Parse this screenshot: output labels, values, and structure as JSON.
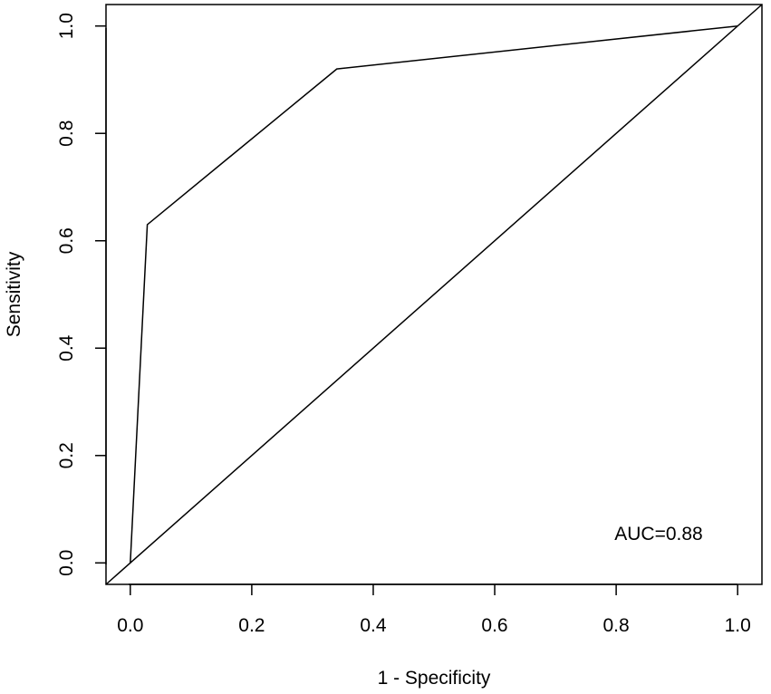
{
  "chart_data": {
    "type": "line",
    "title": "",
    "xlabel": "1 - Specificity",
    "ylabel": "Sensitivity",
    "xlim": [
      -0.04,
      1.04
    ],
    "ylim": [
      -0.04,
      1.04
    ],
    "xticks": [
      0.0,
      0.2,
      0.4,
      0.6,
      0.8,
      1.0
    ],
    "yticks": [
      0.0,
      0.2,
      0.4,
      0.6,
      0.8,
      1.0
    ],
    "xtick_labels": [
      "0.0",
      "0.2",
      "0.4",
      "0.6",
      "0.8",
      "1.0"
    ],
    "ytick_labels": [
      "0.0",
      "0.2",
      "0.4",
      "0.6",
      "0.8",
      "1.0"
    ],
    "grid": false,
    "series": [
      {
        "points": [
          [
            0.0,
            0.0
          ],
          [
            0.028,
            0.63
          ],
          [
            0.34,
            0.92
          ],
          [
            1.0,
            1.0
          ]
        ]
      }
    ],
    "reference_line": [
      [
        -0.04,
        -0.04
      ],
      [
        1.04,
        1.04
      ]
    ],
    "annotation": "AUC=0.88"
  }
}
